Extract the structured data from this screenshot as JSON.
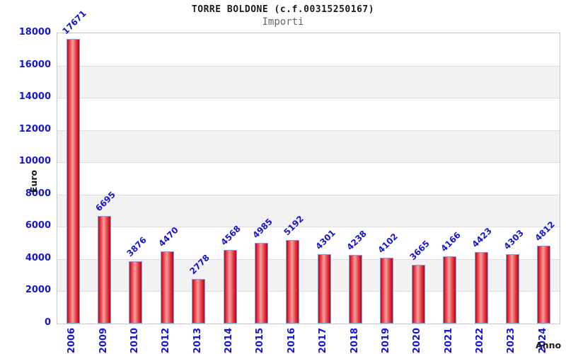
{
  "header": {
    "title": "TORRE BOLDONE (c.f.00315250167)",
    "subtitle": "Importi"
  },
  "chart_data": {
    "type": "bar",
    "title": "TORRE BOLDONE (c.f.00315250167)",
    "subtitle": "Importi",
    "xlabel": "Anno",
    "ylabel": "Euro",
    "categories": [
      "2006",
      "2009",
      "2010",
      "2012",
      "2013",
      "2014",
      "2015",
      "2016",
      "2017",
      "2018",
      "2019",
      "2020",
      "2021",
      "2022",
      "2023",
      "2024"
    ],
    "values": [
      17671,
      6695,
      3876,
      4470,
      2778,
      4568,
      4985,
      5192,
      4301,
      4238,
      4102,
      3665,
      4166,
      4423,
      4303,
      4812
    ],
    "ylim": [
      0,
      18000
    ],
    "ytick_step": 2000,
    "y_ticks": [
      0,
      2000,
      4000,
      6000,
      8000,
      10000,
      12000,
      14000,
      16000,
      18000
    ],
    "bar_value_labels_rotation_deg": -45,
    "x_tick_rotation_deg": -90,
    "grid": "horizontal gridlines every 2000 with alternating white/gray bands",
    "legend": "none",
    "colors": {
      "bar_fill_edge": "#c00a16",
      "bar_fill_center": "#f5a0a0",
      "bar_border": "#74a7f0",
      "label_blue": "#1616d2",
      "band_gray": "#f2f2f2",
      "band_white": "#ffffff",
      "grid_line": "#dedede",
      "plot_border": "#c9c9c9",
      "title_color": "#1a1a1a",
      "subtitle_color": "#666666",
      "axis_title_color": "#1a1a1a"
    }
  }
}
